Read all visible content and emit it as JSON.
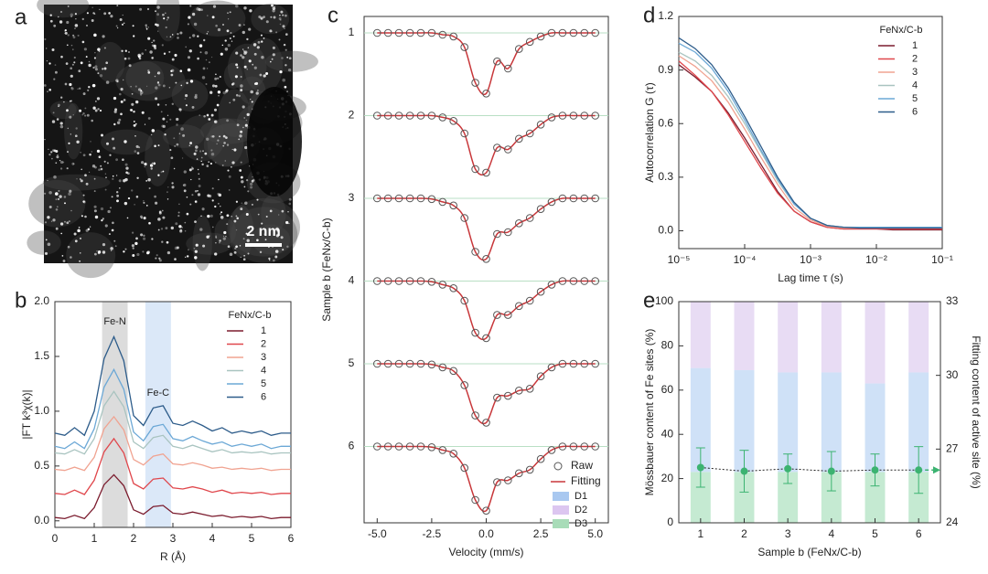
{
  "chart_data": [
    {
      "panel_label": "a",
      "type": "image",
      "scale_bar": "2 nm"
    },
    {
      "panel_label": "b",
      "type": "line",
      "xlabel": "R (Å)",
      "ylabel": "|FT k³χ(k)|",
      "x": [
        0,
        0.25,
        0.5,
        0.75,
        1,
        1.25,
        1.5,
        1.75,
        2,
        2.25,
        2.5,
        2.75,
        3,
        3.25,
        3.5,
        3.75,
        4,
        4.25,
        4.5,
        4.75,
        5,
        5.25,
        5.5,
        5.75,
        6
      ],
      "xlim": [
        0,
        6
      ],
      "xticks": [
        0,
        1,
        2,
        3,
        4,
        5,
        6
      ],
      "ylim": [
        -0.06,
        2
      ],
      "yticks": [
        {
          "value": 0,
          "label": "0.0"
        },
        0.5,
        {
          "value": 1,
          "label": "1.0"
        },
        1.5,
        {
          "value": 2,
          "label": "2.0"
        }
      ],
      "legend_title": "FeNx/C-b",
      "legend": "upper right",
      "shaded_regions": [
        {
          "label": "Fe-N",
          "range": [
            1.2,
            1.85
          ],
          "color": "#dcdcdc"
        },
        {
          "label": "Fe-C",
          "range": [
            2.3,
            2.95
          ],
          "color": "#dbe8f8"
        }
      ],
      "series": [
        {
          "name": "1",
          "color": "#7b1c2e",
          "values": [
            0.03,
            0.02,
            0.05,
            0.02,
            0.12,
            0.33,
            0.42,
            0.32,
            0.1,
            0.06,
            0.13,
            0.14,
            0.07,
            0.06,
            0.08,
            0.06,
            0.04,
            0.05,
            0.03,
            0.04,
            0.03,
            0.04,
            0.02,
            0.03,
            0.03
          ]
        },
        {
          "name": "2",
          "color": "#e0474c",
          "values": [
            0.25,
            0.24,
            0.28,
            0.24,
            0.37,
            0.63,
            0.75,
            0.62,
            0.34,
            0.29,
            0.38,
            0.39,
            0.3,
            0.29,
            0.31,
            0.29,
            0.26,
            0.28,
            0.25,
            0.26,
            0.25,
            0.26,
            0.24,
            0.25,
            0.25
          ]
        },
        {
          "name": "3",
          "color": "#f0a391",
          "values": [
            0.47,
            0.46,
            0.49,
            0.46,
            0.58,
            0.84,
            0.95,
            0.83,
            0.56,
            0.51,
            0.59,
            0.61,
            0.52,
            0.51,
            0.53,
            0.51,
            0.48,
            0.49,
            0.47,
            0.48,
            0.47,
            0.48,
            0.46,
            0.47,
            0.47
          ]
        },
        {
          "name": "4",
          "color": "#a9c4c0",
          "values": [
            0.62,
            0.61,
            0.65,
            0.61,
            0.75,
            1.05,
            1.18,
            1.04,
            0.72,
            0.66,
            0.76,
            0.78,
            0.68,
            0.66,
            0.69,
            0.66,
            0.63,
            0.65,
            0.62,
            0.63,
            0.62,
            0.63,
            0.61,
            0.62,
            0.62
          ]
        },
        {
          "name": "5",
          "color": "#6ca8d6",
          "values": [
            0.68,
            0.66,
            0.72,
            0.66,
            0.84,
            1.22,
            1.38,
            1.2,
            0.81,
            0.73,
            0.86,
            0.88,
            0.75,
            0.73,
            0.77,
            0.73,
            0.7,
            0.72,
            0.68,
            0.7,
            0.68,
            0.7,
            0.66,
            0.68,
            0.68
          ]
        },
        {
          "name": "6",
          "color": "#2d5c8a",
          "values": [
            0.8,
            0.78,
            0.85,
            0.78,
            1.0,
            1.48,
            1.68,
            1.46,
            0.96,
            0.87,
            1.03,
            1.05,
            0.89,
            0.87,
            0.91,
            0.87,
            0.82,
            0.85,
            0.8,
            0.82,
            0.8,
            0.82,
            0.78,
            0.8,
            0.8
          ]
        }
      ]
    },
    {
      "panel_label": "c",
      "type": "spectrum",
      "xlabel": "Velocity (mm/s)",
      "ylabel": "Sample b (FeNx/C-b)",
      "x": [
        -5,
        -4.5,
        -4,
        -3.5,
        -3,
        -2.5,
        -2,
        -1.5,
        -1,
        -0.5,
        0,
        0.5,
        1,
        1.5,
        2,
        2.5,
        3,
        3.5,
        4,
        4.5,
        5
      ],
      "xlim": [
        -5.6,
        5.6
      ],
      "xticks": [
        {
          "value": -5,
          "label": "-5.0"
        },
        -2.5,
        {
          "value": 0,
          "label": "0.0"
        },
        2.5,
        {
          "value": 5,
          "label": "5.0"
        }
      ],
      "legend": [
        {
          "name": "Raw",
          "color": "#555555"
        },
        {
          "name": "Fitting",
          "color": "#c8373a"
        }
      ],
      "components": [
        {
          "name": "D1",
          "color": "#a9c8f0"
        },
        {
          "name": "D2",
          "color": "#dcc6f0"
        },
        {
          "name": "D3",
          "color": "#a8dcb8"
        }
      ],
      "series": [
        {
          "name": "1",
          "values": [
            1,
            1,
            1,
            1,
            1,
            1,
            0.995,
            0.99,
            0.96,
            0.86,
            0.83,
            0.92,
            0.9,
            0.955,
            0.975,
            0.99,
            1,
            1,
            1,
            1,
            1
          ]
        },
        {
          "name": "2",
          "values": [
            1,
            1,
            1,
            1,
            1,
            1,
            0.995,
            0.985,
            0.95,
            0.85,
            0.84,
            0.91,
            0.905,
            0.935,
            0.95,
            0.975,
            0.995,
            1,
            1,
            1,
            1
          ]
        },
        {
          "name": "3",
          "values": [
            1,
            1,
            1,
            1,
            1,
            0.998,
            0.99,
            0.98,
            0.945,
            0.85,
            0.83,
            0.9,
            0.905,
            0.93,
            0.945,
            0.97,
            0.99,
            1,
            1,
            1,
            1
          ]
        },
        {
          "name": "4",
          "values": [
            1,
            1,
            1,
            1,
            1,
            0.998,
            0.99,
            0.98,
            0.945,
            0.855,
            0.84,
            0.905,
            0.905,
            0.93,
            0.945,
            0.97,
            0.99,
            1,
            1,
            1,
            1
          ]
        },
        {
          "name": "5",
          "values": [
            1,
            1,
            1,
            1,
            1,
            0.998,
            0.99,
            0.98,
            0.94,
            0.855,
            0.835,
            0.905,
            0.91,
            0.925,
            0.93,
            0.965,
            0.99,
            1,
            1,
            1,
            1
          ]
        },
        {
          "name": "6",
          "values": [
            1,
            1,
            1,
            1,
            1,
            0.998,
            0.99,
            0.98,
            0.94,
            0.85,
            0.82,
            0.9,
            0.905,
            0.925,
            0.935,
            0.965,
            0.99,
            1,
            1,
            1,
            1
          ]
        }
      ]
    },
    {
      "panel_label": "d",
      "type": "line",
      "xscale": "log",
      "xlabel": "Lag time τ (s)",
      "ylabel": "Autocorrelation G (τ)",
      "x": [
        1e-05,
        1.78e-05,
        3.16e-05,
        5.62e-05,
        0.0001,
        0.000178,
        0.000316,
        0.000562,
        0.001,
        0.00178,
        0.00316,
        0.00562,
        0.01,
        0.0178,
        0.0316,
        0.0562,
        0.1
      ],
      "xlim": [
        1e-05,
        0.1
      ],
      "xticks": [
        {
          "value": 1e-05,
          "label": "10⁻⁵"
        },
        {
          "value": 0.0001,
          "label": "10⁻⁴"
        },
        {
          "value": 0.001,
          "label": "10⁻³"
        },
        {
          "value": 0.01,
          "label": "10⁻²"
        },
        {
          "value": 0.1,
          "label": "10⁻¹"
        }
      ],
      "ylim": [
        -0.1,
        1.2
      ],
      "yticks": [
        {
          "value": 0,
          "label": "0.0"
        },
        0.3,
        0.6,
        0.9,
        1.2
      ],
      "legend_title": "FeNx/C-b",
      "legend": "upper right",
      "series": [
        {
          "name": "1",
          "color": "#7b1c2e",
          "values": [
            0.93,
            0.86,
            0.78,
            0.66,
            0.52,
            0.37,
            0.22,
            0.11,
            0.05,
            0.02,
            0.01,
            0.01,
            0.01,
            0.005,
            0.005,
            0.005,
            0.005
          ]
        },
        {
          "name": "2",
          "color": "#e0474c",
          "values": [
            0.95,
            0.87,
            0.78,
            0.65,
            0.5,
            0.35,
            0.21,
            0.11,
            0.05,
            0.02,
            0.01,
            0.01,
            0.01,
            0.01,
            0.01,
            0.01,
            0.01
          ]
        },
        {
          "name": "3",
          "color": "#f0a391",
          "values": [
            0.98,
            0.92,
            0.84,
            0.72,
            0.57,
            0.41,
            0.26,
            0.13,
            0.06,
            0.025,
            0.015,
            0.015,
            0.015,
            0.015,
            0.015,
            0.015,
            0.015
          ]
        },
        {
          "name": "4",
          "color": "#a9c4c0",
          "values": [
            1.0,
            0.95,
            0.87,
            0.75,
            0.6,
            0.44,
            0.28,
            0.15,
            0.07,
            0.03,
            0.02,
            0.02,
            0.02,
            0.02,
            0.02,
            0.02,
            0.02
          ]
        },
        {
          "name": "5",
          "color": "#6ca8d6",
          "values": [
            1.05,
            1.0,
            0.91,
            0.78,
            0.62,
            0.45,
            0.29,
            0.15,
            0.07,
            0.03,
            0.02,
            0.02,
            0.02,
            0.02,
            0.02,
            0.02,
            0.02
          ]
        },
        {
          "name": "6",
          "color": "#2d5c8a",
          "values": [
            1.08,
            1.02,
            0.93,
            0.8,
            0.64,
            0.47,
            0.3,
            0.16,
            0.07,
            0.03,
            0.02,
            0.015,
            0.015,
            0.015,
            0.015,
            0.015,
            0.015
          ]
        }
      ]
    },
    {
      "panel_label": "e",
      "type": "bar",
      "xlabel": "Sample b (FeNx/C-b)",
      "ylabel": "Mössbauer content of Fe sites (%)",
      "y2label": "Fitting content of active site (%)",
      "categories": [
        "1",
        "2",
        "3",
        "4",
        "5",
        "6"
      ],
      "ylim": [
        0,
        100
      ],
      "yticks": [
        0,
        20,
        40,
        60,
        80,
        100
      ],
      "y2lim": [
        24,
        33
      ],
      "y2ticks": [
        24,
        27,
        30,
        33
      ],
      "series": [
        {
          "color": "#c5ead2",
          "values": [
            23,
            23,
            23,
            23,
            23,
            23
          ]
        },
        {
          "color": "#cfe1f7",
          "values": [
            47,
            46,
            45,
            45,
            40,
            45
          ]
        },
        {
          "color": "#e8dcf4",
          "values": [
            30,
            31,
            32,
            32,
            37,
            32
          ]
        },
        {
          "axis": "y2",
          "color": "#3cb371",
          "values": [
            26.25,
            26.1,
            26.2,
            26.1,
            26.15,
            26.15
          ],
          "errors": [
            0.8,
            0.85,
            0.6,
            0.8,
            0.65,
            0.95
          ]
        }
      ]
    }
  ]
}
